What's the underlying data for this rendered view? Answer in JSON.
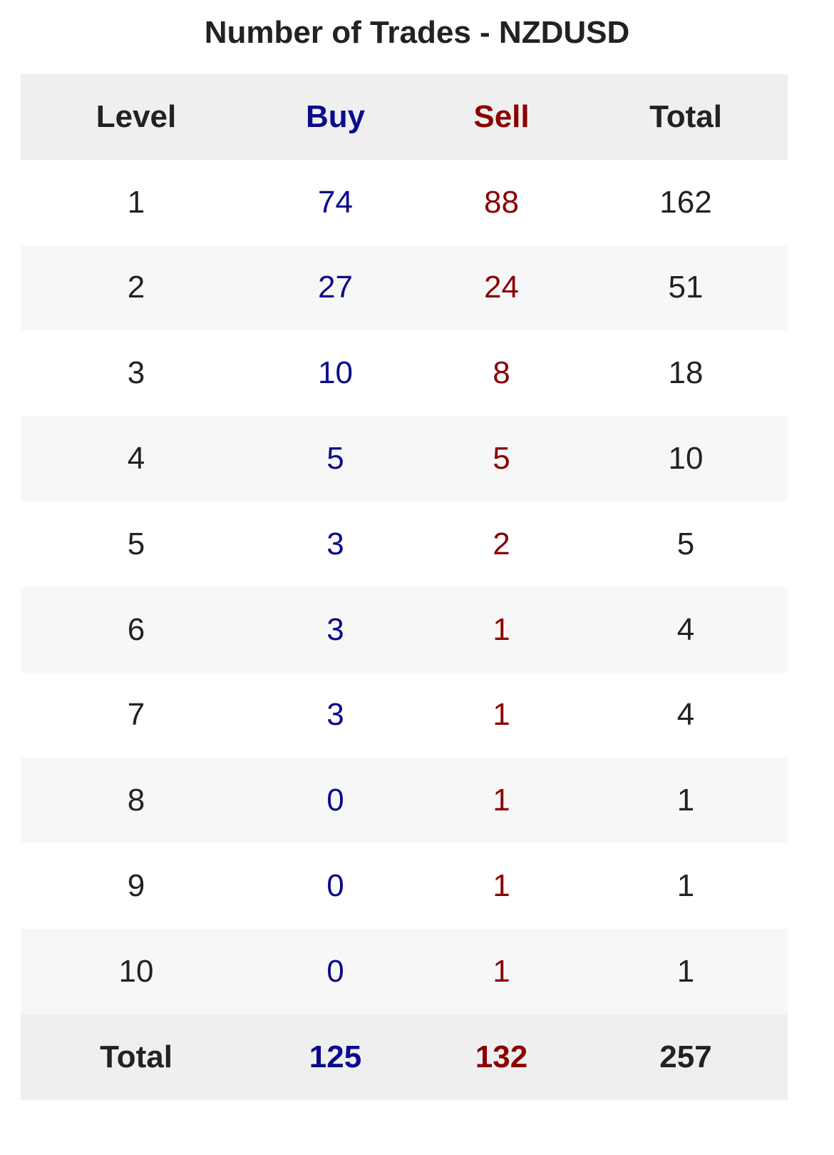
{
  "title": "Number of Trades - NZDUSD",
  "colors": {
    "buy": "#0b0b8c",
    "sell": "#8b0000",
    "text": "#222222",
    "header_bg": "#efefef",
    "stripe_bg": "#f7f7f7"
  },
  "table": {
    "headers": [
      "Level",
      "Buy",
      "Sell",
      "Total"
    ],
    "rows": [
      [
        "1",
        "74",
        "88",
        "162"
      ],
      [
        "2",
        "27",
        "24",
        "51"
      ],
      [
        "3",
        "10",
        "8",
        "18"
      ],
      [
        "4",
        "5",
        "5",
        "10"
      ],
      [
        "5",
        "3",
        "2",
        "5"
      ],
      [
        "6",
        "3",
        "1",
        "4"
      ],
      [
        "7",
        "3",
        "1",
        "4"
      ],
      [
        "8",
        "0",
        "1",
        "1"
      ],
      [
        "9",
        "0",
        "1",
        "1"
      ],
      [
        "10",
        "0",
        "1",
        "1"
      ]
    ],
    "footer": [
      "Total",
      "125",
      "132",
      "257"
    ]
  }
}
